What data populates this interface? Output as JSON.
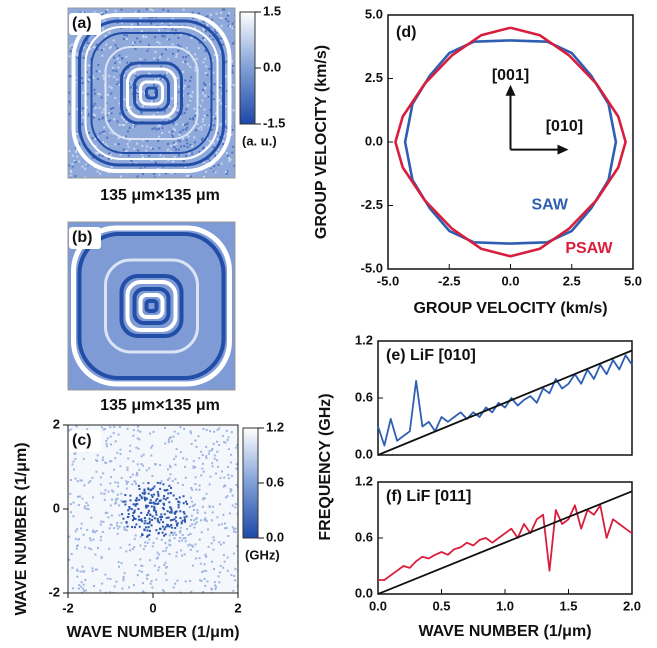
{
  "chart_data": [
    {
      "type": "image",
      "title": "(a)",
      "clim": [
        -1.5,
        1.5
      ],
      "cticks": [
        1.5,
        {
          "value": 0,
          "label": "0.0"
        },
        -1.5
      ],
      "clabel": "(a. u.)",
      "caption": "135 μm×135 μm"
    },
    {
      "type": "image",
      "title": "(b)",
      "caption": "135 μm×135 μm"
    },
    {
      "type": "image",
      "title": "(c)",
      "xlim": [
        -2,
        2
      ],
      "ylim": [
        -2,
        2
      ],
      "xticks": [
        -2,
        0,
        2
      ],
      "yticks": [
        -2,
        0,
        2
      ],
      "xlabel": "WAVE NUMBER (1/μm)",
      "ylabel": "WAVE NUMBER (1/μm)",
      "clim": [
        0,
        1.2
      ],
      "cticks": [
        1.2,
        0.6,
        {
          "value": 0,
          "label": "0.0"
        }
      ],
      "clabel": "(GHz)"
    },
    {
      "type": "line",
      "title": "(d)",
      "xlabel": "GROUP VELOCITY (km/s)",
      "ylabel": "GROUP VELOCITY (km/s)",
      "xlim": [
        -5,
        5
      ],
      "ylim": [
        -5,
        5
      ],
      "xticks": [
        {
          "value": -5,
          "label": "-5.0"
        },
        -2.5,
        {
          "value": 0,
          "label": "0.0"
        },
        2.5,
        {
          "value": 5,
          "label": "5.0"
        }
      ],
      "yticks": [
        {
          "value": -5,
          "label": "-5.0"
        },
        -2.5,
        {
          "value": 0,
          "label": "0.0"
        },
        2.5,
        {
          "value": 5,
          "label": "5.0"
        }
      ],
      "annotations": [
        "[001]",
        "[010]"
      ],
      "series": [
        {
          "name": "SAW",
          "color": "#2f5fb3",
          "x": [
            0,
            1.5,
            2.5,
            3.3,
            4.0,
            4.2,
            4.3,
            4.2,
            4.0,
            3.3,
            2.5,
            1.5,
            0,
            -1.5,
            -2.5,
            -3.3,
            -4.0,
            -4.2,
            -4.3,
            -4.2,
            -4.0,
            -3.3,
            -2.5,
            -1.5,
            0
          ],
          "values": [
            4.0,
            3.95,
            3.5,
            2.6,
            1.5,
            0.5,
            0,
            -0.5,
            -1.5,
            -2.6,
            -3.5,
            -3.95,
            -4.0,
            -3.95,
            -3.5,
            -2.6,
            -1.5,
            -0.5,
            0,
            0.5,
            1.5,
            2.6,
            3.5,
            3.95,
            4.0
          ]
        },
        {
          "name": "PSAW",
          "color": "#d81e3c",
          "x": [
            0,
            1.2,
            2.4,
            3.5,
            4.4,
            4.7,
            4.4,
            3.5,
            2.4,
            1.2,
            0,
            -1.2,
            -2.4,
            -3.5,
            -4.4,
            -4.7,
            -4.4,
            -3.5,
            -2.4,
            -1.2,
            0
          ],
          "values": [
            4.5,
            4.2,
            3.4,
            2.3,
            1.0,
            0,
            -1.0,
            -2.3,
            -3.4,
            -4.2,
            -4.5,
            -4.2,
            -3.4,
            -2.3,
            -1.0,
            0,
            1.0,
            2.3,
            3.4,
            4.2,
            4.5
          ]
        }
      ]
    },
    {
      "type": "line",
      "title": "(e) LiF [010]",
      "ylabel": "FREQUENCY (GHz)",
      "xlim": [
        0,
        2
      ],
      "ylim": [
        0,
        1.2
      ],
      "yticks": [
        {
          "value": 0,
          "label": "0.0"
        },
        0.6,
        1.2
      ],
      "series": [
        {
          "color": "#2f5fb3",
          "x": [
            0,
            0.05,
            0.1,
            0.15,
            0.2,
            0.25,
            0.3,
            0.35,
            0.4,
            0.45,
            0.5,
            0.55,
            0.6,
            0.65,
            0.7,
            0.75,
            0.8,
            0.85,
            0.9,
            0.95,
            1.0,
            1.05,
            1.1,
            1.15,
            1.2,
            1.25,
            1.3,
            1.35,
            1.4,
            1.45,
            1.5,
            1.55,
            1.6,
            1.65,
            1.7,
            1.75,
            1.8,
            1.85,
            1.9,
            1.95,
            2.0
          ],
          "values": [
            0.3,
            0.1,
            0.38,
            0.15,
            0.2,
            0.25,
            0.78,
            0.3,
            0.35,
            0.25,
            0.4,
            0.35,
            0.4,
            0.45,
            0.38,
            0.45,
            0.4,
            0.5,
            0.45,
            0.55,
            0.5,
            0.6,
            0.52,
            0.58,
            0.62,
            0.55,
            0.7,
            0.65,
            0.8,
            0.7,
            0.75,
            0.85,
            0.75,
            0.9,
            0.8,
            0.95,
            0.85,
            1.0,
            0.9,
            1.05,
            0.95
          ]
        },
        {
          "color": "#111111",
          "x": [
            0,
            2
          ],
          "values": [
            0,
            1.1
          ]
        }
      ]
    },
    {
      "type": "line",
      "title": "(f) LiF [011]",
      "xlabel": "WAVE NUMBER (1/μm)",
      "xlim": [
        0,
        2
      ],
      "ylim": [
        0,
        1.2
      ],
      "xticks": [
        {
          "value": 0,
          "label": "0.0"
        },
        0.5,
        {
          "value": 1,
          "label": "1.0"
        },
        1.5,
        {
          "value": 2,
          "label": "2.0"
        }
      ],
      "yticks": [
        {
          "value": 0,
          "label": "0.0"
        },
        0.6,
        1.2
      ],
      "series": [
        {
          "color": "#d81e3c",
          "x": [
            0,
            0.05,
            0.1,
            0.15,
            0.2,
            0.25,
            0.3,
            0.35,
            0.4,
            0.45,
            0.5,
            0.55,
            0.6,
            0.65,
            0.7,
            0.75,
            0.8,
            0.85,
            0.9,
            0.95,
            1.0,
            1.05,
            1.1,
            1.15,
            1.2,
            1.25,
            1.3,
            1.35,
            1.4,
            1.45,
            1.5,
            1.55,
            1.6,
            1.65,
            1.7,
            1.75,
            1.8,
            1.85,
            1.9,
            1.95,
            2.0
          ],
          "values": [
            0.15,
            0.15,
            0.2,
            0.25,
            0.3,
            0.28,
            0.35,
            0.4,
            0.38,
            0.42,
            0.45,
            0.42,
            0.48,
            0.5,
            0.55,
            0.52,
            0.58,
            0.6,
            0.55,
            0.6,
            0.65,
            0.7,
            0.6,
            0.75,
            0.65,
            0.8,
            0.85,
            0.25,
            0.9,
            0.75,
            0.8,
            0.95,
            0.7,
            0.9,
            0.85,
            0.95,
            0.6,
            0.8,
            0.75,
            0.7,
            0.65
          ]
        },
        {
          "color": "#111111",
          "x": [
            0,
            2
          ],
          "values": [
            0,
            1.1
          ]
        }
      ]
    }
  ]
}
